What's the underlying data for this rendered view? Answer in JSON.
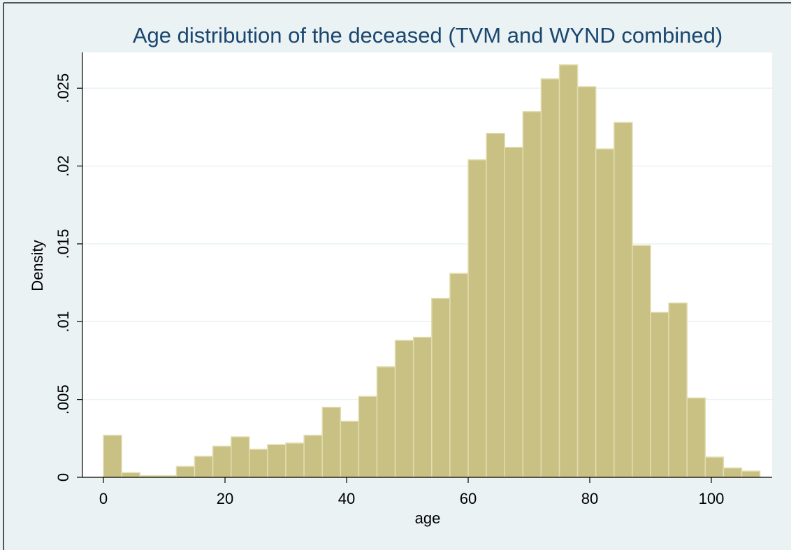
{
  "chart_data": {
    "type": "histogram",
    "title": "Age distribution of the deceased (TVM and WYND combined)",
    "x_label": "age",
    "y_label": "Density",
    "bins": [
      0,
      3,
      6,
      9,
      12,
      15,
      18,
      21,
      24,
      27,
      30,
      33,
      36,
      39,
      42,
      45,
      48,
      51,
      54,
      57,
      60,
      63,
      66,
      69,
      72,
      75,
      78,
      81,
      84,
      87,
      90,
      93,
      96,
      99,
      102,
      105,
      108
    ],
    "values": [
      0.0027,
      0.0003,
      0.0001,
      0.0001,
      0.0007,
      0.00135,
      0.002,
      0.0026,
      0.0018,
      0.0021,
      0.0022,
      0.0027,
      0.0045,
      0.0036,
      0.0052,
      0.0071,
      0.0088,
      0.009,
      0.0115,
      0.0131,
      0.0204,
      0.0221,
      0.0212,
      0.0235,
      0.0256,
      0.0265,
      0.0251,
      0.0211,
      0.0228,
      0.0149,
      0.0106,
      0.0112,
      0.0051,
      0.0013,
      0.0006,
      0.0004
    ],
    "color": "#c9c084",
    "xlim": [
      -3.45,
      110
    ],
    "ylim": [
      0,
      0.0273
    ],
    "xticks": [
      0,
      20,
      40,
      60,
      80,
      100
    ],
    "yticks": [
      0,
      {
        "value": 0.005,
        "label": ".005"
      },
      {
        "value": 0.01,
        "label": ".01"
      },
      {
        "value": 0.015,
        "label": ".015"
      },
      {
        "value": 0.02,
        "label": ".02"
      },
      {
        "value": 0.025,
        "label": ".025"
      }
    ],
    "grid": true
  }
}
